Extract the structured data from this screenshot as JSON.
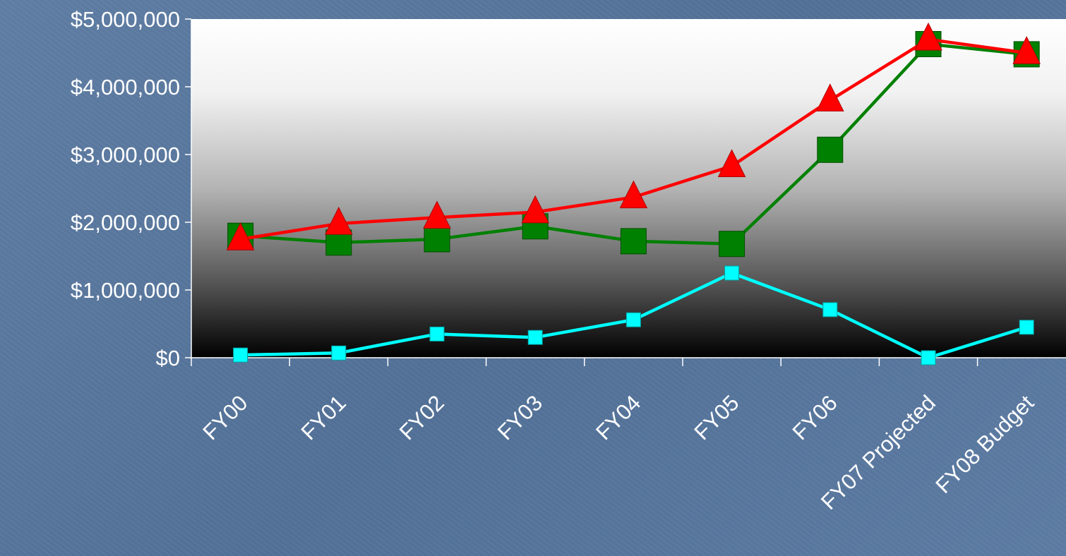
{
  "chart_data": {
    "type": "line",
    "categories": [
      "FY00",
      "FY01",
      "FY02",
      "FY03",
      "FY04",
      "FY05",
      "FY06",
      "FY07 Projected",
      "FY08 Budget"
    ],
    "ylim": [
      0,
      5000000
    ],
    "yticks": [
      0,
      1000000,
      2000000,
      3000000,
      4000000,
      5000000
    ],
    "ytick_labels": [
      "$0",
      "$1,000,000",
      "$2,000,000",
      "$3,000,000",
      "$4,000,000",
      "$5,000,000"
    ],
    "grid": false,
    "plot_background": "white-to-black vertical gradient",
    "series": [
      {
        "color": "#ff0000",
        "marker": "triangle",
        "values": [
          1750000,
          1980000,
          2070000,
          2150000,
          2370000,
          2830000,
          3800000,
          4700000,
          4500000
        ]
      },
      {
        "color": "#008000",
        "marker": "square",
        "values": [
          1800000,
          1700000,
          1750000,
          1940000,
          1720000,
          1680000,
          3070000,
          4630000,
          4480000
        ]
      },
      {
        "color": "#00ffff",
        "marker": "square",
        "values": [
          40000,
          70000,
          350000,
          300000,
          560000,
          1250000,
          710000,
          0,
          450000
        ]
      }
    ]
  }
}
